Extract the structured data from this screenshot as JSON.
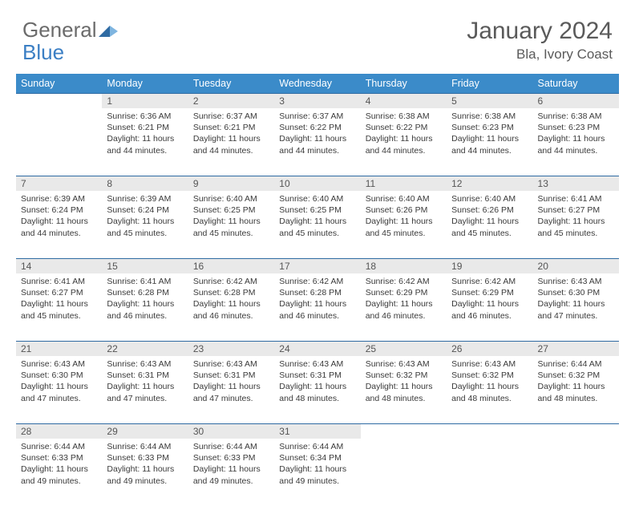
{
  "logo": {
    "text1": "General",
    "text2": "Blue"
  },
  "title": "January 2024",
  "location": "Bla, Ivory Coast",
  "colors": {
    "header_bg": "#3b8bc9",
    "header_text": "#ffffff",
    "rule": "#2f6ba3",
    "daynum_bg": "#e9e9e9",
    "text": "#3a3a3a",
    "logo_gray": "#6b6b6b",
    "logo_blue": "#3b7fc4"
  },
  "weekdays": [
    "Sunday",
    "Monday",
    "Tuesday",
    "Wednesday",
    "Thursday",
    "Friday",
    "Saturday"
  ],
  "weeks": [
    [
      null,
      {
        "n": "1",
        "sunrise": "6:36 AM",
        "sunset": "6:21 PM",
        "daylight": "11 hours and 44 minutes."
      },
      {
        "n": "2",
        "sunrise": "6:37 AM",
        "sunset": "6:21 PM",
        "daylight": "11 hours and 44 minutes."
      },
      {
        "n": "3",
        "sunrise": "6:37 AM",
        "sunset": "6:22 PM",
        "daylight": "11 hours and 44 minutes."
      },
      {
        "n": "4",
        "sunrise": "6:38 AM",
        "sunset": "6:22 PM",
        "daylight": "11 hours and 44 minutes."
      },
      {
        "n": "5",
        "sunrise": "6:38 AM",
        "sunset": "6:23 PM",
        "daylight": "11 hours and 44 minutes."
      },
      {
        "n": "6",
        "sunrise": "6:38 AM",
        "sunset": "6:23 PM",
        "daylight": "11 hours and 44 minutes."
      }
    ],
    [
      {
        "n": "7",
        "sunrise": "6:39 AM",
        "sunset": "6:24 PM",
        "daylight": "11 hours and 44 minutes."
      },
      {
        "n": "8",
        "sunrise": "6:39 AM",
        "sunset": "6:24 PM",
        "daylight": "11 hours and 45 minutes."
      },
      {
        "n": "9",
        "sunrise": "6:40 AM",
        "sunset": "6:25 PM",
        "daylight": "11 hours and 45 minutes."
      },
      {
        "n": "10",
        "sunrise": "6:40 AM",
        "sunset": "6:25 PM",
        "daylight": "11 hours and 45 minutes."
      },
      {
        "n": "11",
        "sunrise": "6:40 AM",
        "sunset": "6:26 PM",
        "daylight": "11 hours and 45 minutes."
      },
      {
        "n": "12",
        "sunrise": "6:40 AM",
        "sunset": "6:26 PM",
        "daylight": "11 hours and 45 minutes."
      },
      {
        "n": "13",
        "sunrise": "6:41 AM",
        "sunset": "6:27 PM",
        "daylight": "11 hours and 45 minutes."
      }
    ],
    [
      {
        "n": "14",
        "sunrise": "6:41 AM",
        "sunset": "6:27 PM",
        "daylight": "11 hours and 45 minutes."
      },
      {
        "n": "15",
        "sunrise": "6:41 AM",
        "sunset": "6:28 PM",
        "daylight": "11 hours and 46 minutes."
      },
      {
        "n": "16",
        "sunrise": "6:42 AM",
        "sunset": "6:28 PM",
        "daylight": "11 hours and 46 minutes."
      },
      {
        "n": "17",
        "sunrise": "6:42 AM",
        "sunset": "6:28 PM",
        "daylight": "11 hours and 46 minutes."
      },
      {
        "n": "18",
        "sunrise": "6:42 AM",
        "sunset": "6:29 PM",
        "daylight": "11 hours and 46 minutes."
      },
      {
        "n": "19",
        "sunrise": "6:42 AM",
        "sunset": "6:29 PM",
        "daylight": "11 hours and 46 minutes."
      },
      {
        "n": "20",
        "sunrise": "6:43 AM",
        "sunset": "6:30 PM",
        "daylight": "11 hours and 47 minutes."
      }
    ],
    [
      {
        "n": "21",
        "sunrise": "6:43 AM",
        "sunset": "6:30 PM",
        "daylight": "11 hours and 47 minutes."
      },
      {
        "n": "22",
        "sunrise": "6:43 AM",
        "sunset": "6:31 PM",
        "daylight": "11 hours and 47 minutes."
      },
      {
        "n": "23",
        "sunrise": "6:43 AM",
        "sunset": "6:31 PM",
        "daylight": "11 hours and 47 minutes."
      },
      {
        "n": "24",
        "sunrise": "6:43 AM",
        "sunset": "6:31 PM",
        "daylight": "11 hours and 48 minutes."
      },
      {
        "n": "25",
        "sunrise": "6:43 AM",
        "sunset": "6:32 PM",
        "daylight": "11 hours and 48 minutes."
      },
      {
        "n": "26",
        "sunrise": "6:43 AM",
        "sunset": "6:32 PM",
        "daylight": "11 hours and 48 minutes."
      },
      {
        "n": "27",
        "sunrise": "6:44 AM",
        "sunset": "6:32 PM",
        "daylight": "11 hours and 48 minutes."
      }
    ],
    [
      {
        "n": "28",
        "sunrise": "6:44 AM",
        "sunset": "6:33 PM",
        "daylight": "11 hours and 49 minutes."
      },
      {
        "n": "29",
        "sunrise": "6:44 AM",
        "sunset": "6:33 PM",
        "daylight": "11 hours and 49 minutes."
      },
      {
        "n": "30",
        "sunrise": "6:44 AM",
        "sunset": "6:33 PM",
        "daylight": "11 hours and 49 minutes."
      },
      {
        "n": "31",
        "sunrise": "6:44 AM",
        "sunset": "6:34 PM",
        "daylight": "11 hours and 49 minutes."
      },
      null,
      null,
      null
    ]
  ],
  "labels": {
    "sunrise": "Sunrise:",
    "sunset": "Sunset:",
    "daylight": "Daylight:"
  }
}
